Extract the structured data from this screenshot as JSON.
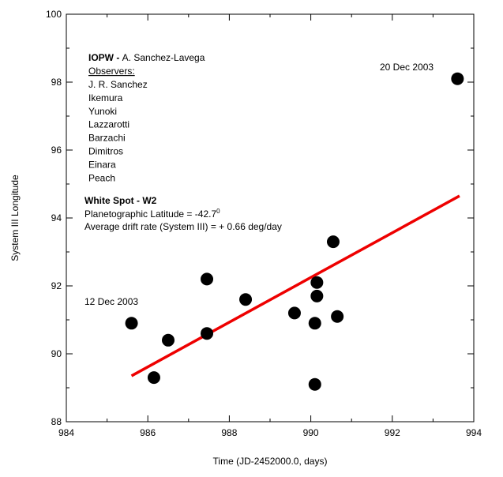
{
  "chart_data": {
    "type": "scatter",
    "xlabel": "Time (JD-2452000.0, days)",
    "ylabel": "System III Longitude",
    "xlim": [
      984,
      994
    ],
    "ylim": [
      88,
      100
    ],
    "xticks": [
      984,
      986,
      988,
      990,
      992,
      994
    ],
    "yticks": [
      88,
      90,
      92,
      94,
      96,
      98,
      100
    ],
    "grid": false,
    "points": {
      "x": [
        985.6,
        986.15,
        986.5,
        987.45,
        987.45,
        988.4,
        989.6,
        990.1,
        990.1,
        990.15,
        990.15,
        990.55,
        990.65,
        993.6
      ],
      "y": [
        90.9,
        89.3,
        90.4,
        92.2,
        90.6,
        91.6,
        91.2,
        89.1,
        90.9,
        91.7,
        92.1,
        93.3,
        91.1,
        98.1
      ],
      "color": "#000000"
    },
    "fit_line": {
      "x": [
        985.6,
        993.65
      ],
      "y": [
        89.35,
        94.65
      ],
      "color": "#ee0000"
    },
    "annotations": {
      "date_start": "12 Dec 2003",
      "date_end": "20 Dec 2003",
      "iopw_bold": "IOPW - ",
      "iopw_name": "A. Sanchez-Lavega",
      "observers_heading": "Observers:",
      "observers": [
        "J. R. Sanchez",
        "Ikemura",
        "Yunoki",
        "Lazzarotti",
        "Barzachi",
        "Dimitros",
        "Einara",
        "Peach"
      ],
      "spot_title": "White Spot - W2",
      "latitude_text": "Planetographic Latitude = -42.7",
      "latitude_sup": "0",
      "drift_text": "Average drift rate (System III) = + 0.66 deg/day"
    }
  }
}
